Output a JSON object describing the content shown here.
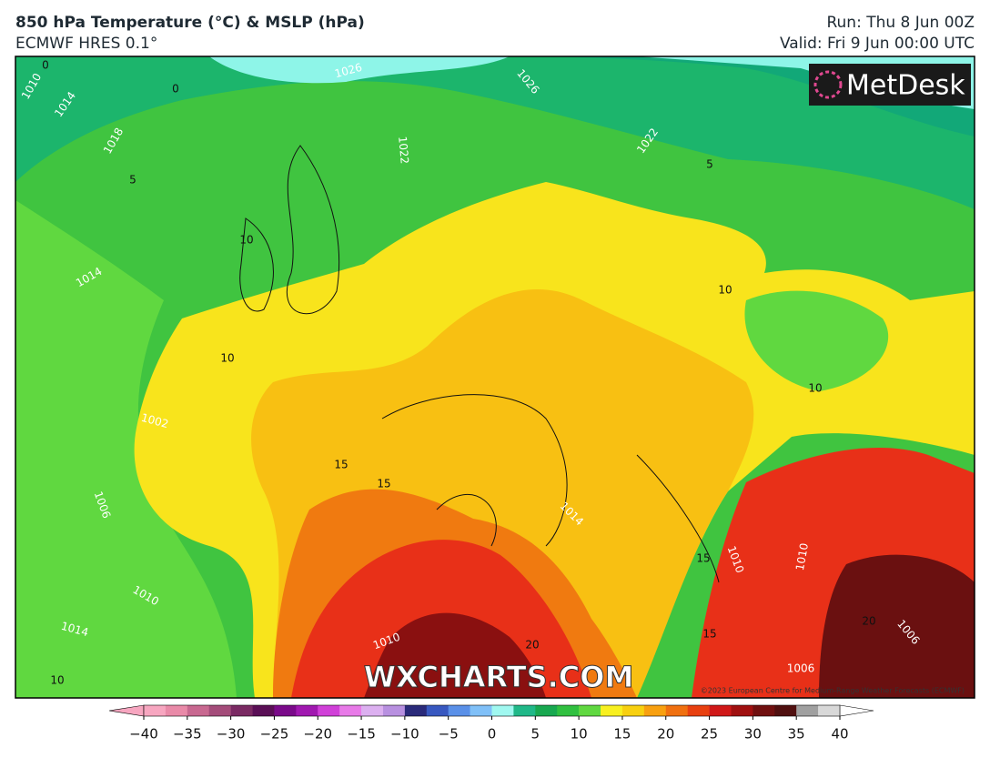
{
  "header": {
    "title": "850 hPa Temperature (°C) & MSLP (hPa)",
    "subtitle": "ECMWF HRES 0.1°",
    "run": "Run: Thu 8 Jun 00Z",
    "valid": "Valid: Fri 9 Jun 00:00 UTC"
  },
  "map": {
    "logo": "MetDesk",
    "watermark": "WXCHARTS.COM",
    "copyright": "©2023 European Centre for Medium-Range Weather Forecasts (ECMWF)",
    "isobar_labels": [
      1010,
      1014,
      1018,
      1022,
      1026,
      1026,
      1022,
      1014,
      1002,
      1006,
      1010,
      1014,
      1010,
      1014,
      1010,
      1010,
      1006,
      1006
    ],
    "isotherm_labels": [
      0,
      0,
      5,
      5,
      10,
      10,
      10,
      10,
      10,
      15,
      15,
      15,
      15,
      20,
      20
    ]
  },
  "colorbar": {
    "lim": [
      -40,
      40
    ],
    "ticks": [
      {
        "value": -40,
        "label": "−40"
      },
      {
        "value": -35,
        "label": "−35"
      },
      {
        "value": -30,
        "label": "−30"
      },
      {
        "value": -25,
        "label": "−25"
      },
      {
        "value": -20,
        "label": "−20"
      },
      {
        "value": -15,
        "label": "−15"
      },
      {
        "value": -10,
        "label": "−10"
      },
      {
        "value": -5,
        "label": "−5"
      },
      0,
      5,
      10,
      15,
      20,
      25,
      30,
      35,
      40
    ],
    "colors": [
      "#f7a6c0",
      "#e98aa8",
      "#c86890",
      "#a44c7a",
      "#7a2a63",
      "#5a0f56",
      "#7a0a8a",
      "#a018b0",
      "#d040d8",
      "#e87ae8",
      "#dcb0f0",
      "#b890e0",
      "#2a2a7a",
      "#3858c0",
      "#5a90e8",
      "#80c0f8",
      "#a0f8f0",
      "#20b888",
      "#18a850",
      "#30c040",
      "#60d840",
      "#f8f020",
      "#f8d010",
      "#f8a010",
      "#f07010",
      "#e84010",
      "#d01818",
      "#a01010",
      "#701010",
      "#501010",
      "#a0a0a0",
      "#d8d8d8"
    ]
  }
}
